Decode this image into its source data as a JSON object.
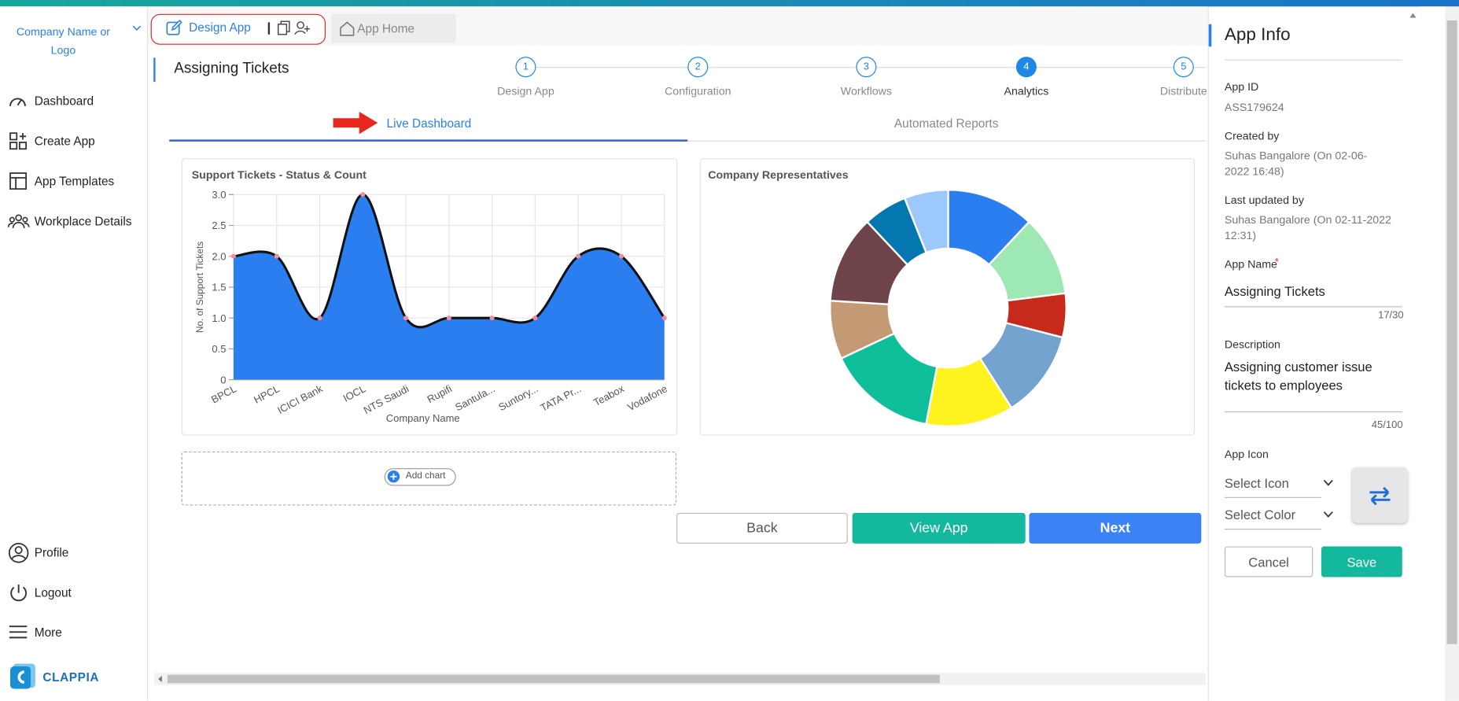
{
  "sidebar": {
    "company": "Company Name or Logo",
    "nav": [
      "Dashboard",
      "Create App",
      "App Templates",
      "Workplace Details"
    ],
    "bottom": [
      "Profile",
      "Logout",
      "More"
    ],
    "brand": "CLAPPIA"
  },
  "tabs": [
    "Design App",
    "App Home"
  ],
  "header": {
    "title": "Assigning Tickets",
    "steps": [
      {
        "number": 1,
        "label": "Design App"
      },
      {
        "number": 2,
        "label": "Configuration"
      },
      {
        "number": 3,
        "label": "Workflows"
      },
      {
        "number": 4,
        "label": "Analytics"
      },
      {
        "number": 5,
        "label": "Distribute"
      }
    ]
  },
  "subtabs": [
    "Live Dashboard",
    "Automated Reports"
  ],
  "chart_data": [
    {
      "type": "area",
      "title": "Support Tickets - Status & Count",
      "x_label": "Company Name",
      "y_label": "No. of Support Tickets",
      "categories": [
        "BPCL",
        "HPCL",
        "ICICI Bank",
        "IOCL",
        "NTS Saudi",
        "Rupifi",
        "Santula...",
        "Suntory...",
        "TATA Pr...",
        "Teabox",
        "Vodafone"
      ],
      "values": [
        2,
        2,
        1,
        3,
        1,
        1,
        1,
        1,
        2,
        2,
        1
      ],
      "color": "#2a7ef0",
      "line_color": "#111111",
      "point_color": "#f28b9b",
      "ylim": [
        0,
        3
      ],
      "yticks": [
        0,
        0.5,
        {
          "value": 1,
          "label": "1.0"
        },
        1.5,
        {
          "value": 2,
          "label": "2.0"
        },
        2.5,
        {
          "value": 3,
          "label": "3.0"
        }
      ],
      "grid": true
    },
    {
      "type": "doughnut",
      "title": "Company Representatives",
      "values": [
        12,
        11,
        6,
        12,
        12,
        15,
        8,
        12,
        6,
        6
      ],
      "colors": [
        "#2a7ef0",
        "#9de8b4",
        "#c62a1a",
        "#74a3cf",
        "#fff31f",
        "#0fbf9c",
        "#c49a74",
        "#6e434a",
        "#0577b0",
        "#9dc8fb"
      ]
    }
  ],
  "add_chart": "Add chart",
  "actions": [
    "Back",
    "View App",
    "Next"
  ],
  "app_info": {
    "title": "App Info",
    "app_id_label": "App ID",
    "app_id": "ASS179624",
    "created_label": "Created by",
    "created": "Suhas Bangalore (On 02-06-2022 16:48)",
    "updated_label": "Last updated by",
    "updated": "Suhas Bangalore (On 02-11-2022 12:31)",
    "name_label": "App Name",
    "required_mark": "*",
    "name": "Assigning Tickets",
    "name_count": "17/30",
    "description_label": "Description",
    "description": "Assigning customer issue tickets to employees",
    "description_count": "45/100",
    "icon_label": "App Icon",
    "select_icon": "Select Icon",
    "select_color": "Select Color",
    "cancel": "Cancel",
    "save": "Save"
  }
}
